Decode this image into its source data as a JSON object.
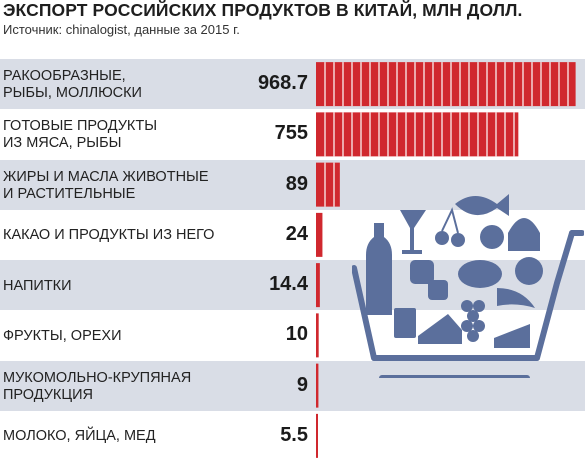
{
  "header": {
    "title": "ЭКСПОРТ РОССИЙСКИХ ПРОДУКТОВ В КИТАЙ, МЛН ДОЛЛ.",
    "subtitle": "Источник: chinalogist, данные за 2015 г."
  },
  "chart_data": {
    "type": "bar",
    "orientation": "horizontal",
    "title": "ЭКСПОРТ РОССИЙСКИХ ПРОДУКТОВ В КИТАЙ, МЛН ДОЛЛ.",
    "categories": [
      "РАКООБРАЗНЫЕ,\nРЫБЫ, МОЛЛЮСКИ",
      "ГОТОВЫЕ ПРОДУКТЫ\nИЗ МЯСА, РЫБЫ",
      "ЖИРЫ И МАСЛА ЖИВОТНЫЕ\nИ РАСТИТЕЛЬНЫЕ",
      "КАКАО И ПРОДУКТЫ ИЗ НЕГО",
      "НАПИТКИ",
      "ФРУКТЫ, ОРЕХИ",
      "МУКОМОЛЬНО-КРУПЯНАЯ\nПРОДУКЦИЯ",
      "МОЛОКО, ЯЙЦА, МЕД"
    ],
    "value_labels": [
      "968.7",
      "755",
      "89",
      "24",
      "14.4",
      "10",
      "9",
      "5.5"
    ],
    "values": [
      968.7,
      755,
      89,
      24,
      14.4,
      10,
      9,
      5.5
    ],
    "xlim": [
      0,
      1000
    ],
    "grid": false,
    "legend": "none",
    "bar_color": "#d0282e",
    "bar_segment_color": "#ffffff",
    "row_band_color": "#d9dde6"
  },
  "illustration": {
    "name": "shopping-cart-with-food",
    "color": "#5b6f9c"
  }
}
